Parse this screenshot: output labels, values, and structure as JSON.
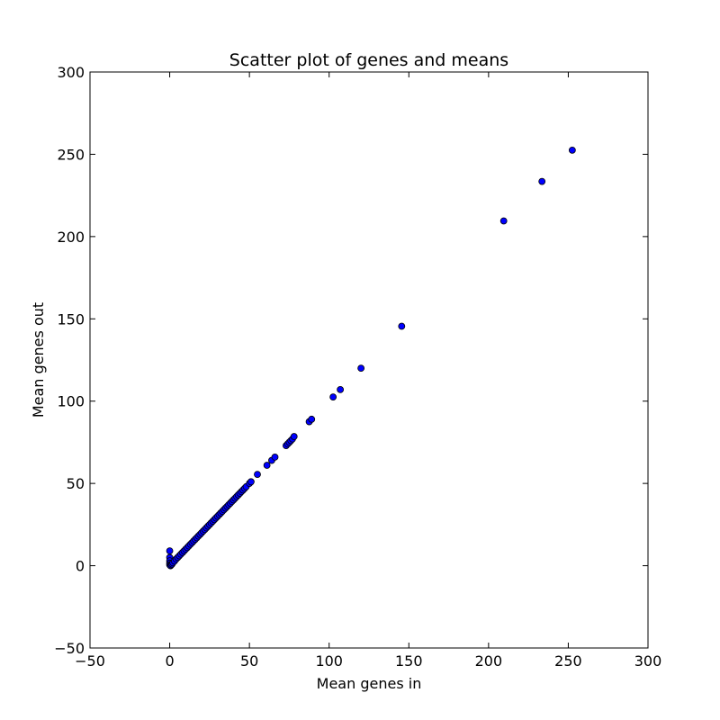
{
  "chart_data": {
    "type": "scatter",
    "title": "Scatter plot of genes and means",
    "xlabel": "Mean genes in",
    "ylabel": "Mean genes out",
    "xlim": [
      -50,
      300
    ],
    "ylim": [
      -50,
      300
    ],
    "x_ticks": [
      -50,
      0,
      50,
      100,
      150,
      200,
      250,
      300
    ],
    "y_ticks": [
      -50,
      0,
      50,
      100,
      150,
      200,
      250,
      300
    ],
    "x_tick_labels": [
      "−50",
      "0",
      "50",
      "100",
      "150",
      "200",
      "250",
      "300"
    ],
    "y_tick_labels": [
      "−50",
      "0",
      "50",
      "100",
      "150",
      "200",
      "250",
      "300"
    ],
    "grid": false,
    "legend": "none",
    "marker_color": "#0000ff",
    "marker_edge_color": "#000000",
    "points": [
      [
        0,
        9
      ],
      [
        0,
        5
      ],
      [
        0,
        3
      ],
      [
        0,
        1.5
      ],
      [
        0,
        0.5
      ],
      [
        0.5,
        0
      ],
      [
        1,
        0.5
      ],
      [
        1.5,
        1
      ],
      [
        2,
        1.8
      ],
      [
        3,
        2.8
      ],
      [
        4,
        4
      ],
      [
        5,
        5
      ],
      [
        6,
        6
      ],
      [
        7,
        7
      ],
      [
        8,
        8
      ],
      [
        9,
        9
      ],
      [
        10,
        10
      ],
      [
        11,
        11
      ],
      [
        12,
        12
      ],
      [
        13,
        13
      ],
      [
        14,
        14
      ],
      [
        15,
        15
      ],
      [
        16,
        16
      ],
      [
        17,
        17
      ],
      [
        18,
        18
      ],
      [
        19,
        19
      ],
      [
        20,
        20
      ],
      [
        21,
        21
      ],
      [
        22,
        22
      ],
      [
        23,
        23
      ],
      [
        24,
        24
      ],
      [
        25,
        25
      ],
      [
        26,
        26
      ],
      [
        27,
        27
      ],
      [
        28,
        28
      ],
      [
        29,
        29
      ],
      [
        30,
        30
      ],
      [
        31,
        31
      ],
      [
        32,
        32
      ],
      [
        33,
        33
      ],
      [
        34,
        34
      ],
      [
        35,
        35
      ],
      [
        36,
        36
      ],
      [
        37,
        37
      ],
      [
        38,
        38
      ],
      [
        39,
        39
      ],
      [
        40,
        40
      ],
      [
        41,
        41
      ],
      [
        42,
        42
      ],
      [
        43,
        43
      ],
      [
        44,
        44
      ],
      [
        45,
        45
      ],
      [
        46,
        46
      ],
      [
        47,
        47
      ],
      [
        48,
        48
      ],
      [
        50,
        50
      ],
      [
        51,
        51
      ],
      [
        55,
        55.5
      ],
      [
        61,
        61
      ],
      [
        64,
        64
      ],
      [
        66,
        66
      ],
      [
        73,
        73
      ],
      [
        74,
        74
      ],
      [
        75,
        75
      ],
      [
        76,
        76
      ],
      [
        77,
        77
      ],
      [
        78,
        78.5
      ],
      [
        87.5,
        87.5
      ],
      [
        89,
        89
      ],
      [
        102.5,
        102.5
      ],
      [
        107,
        107
      ],
      [
        120,
        120
      ],
      [
        145.5,
        145.5
      ],
      [
        209.5,
        209.5
      ],
      [
        233.5,
        233.5
      ],
      [
        252.5,
        252.5
      ]
    ]
  }
}
